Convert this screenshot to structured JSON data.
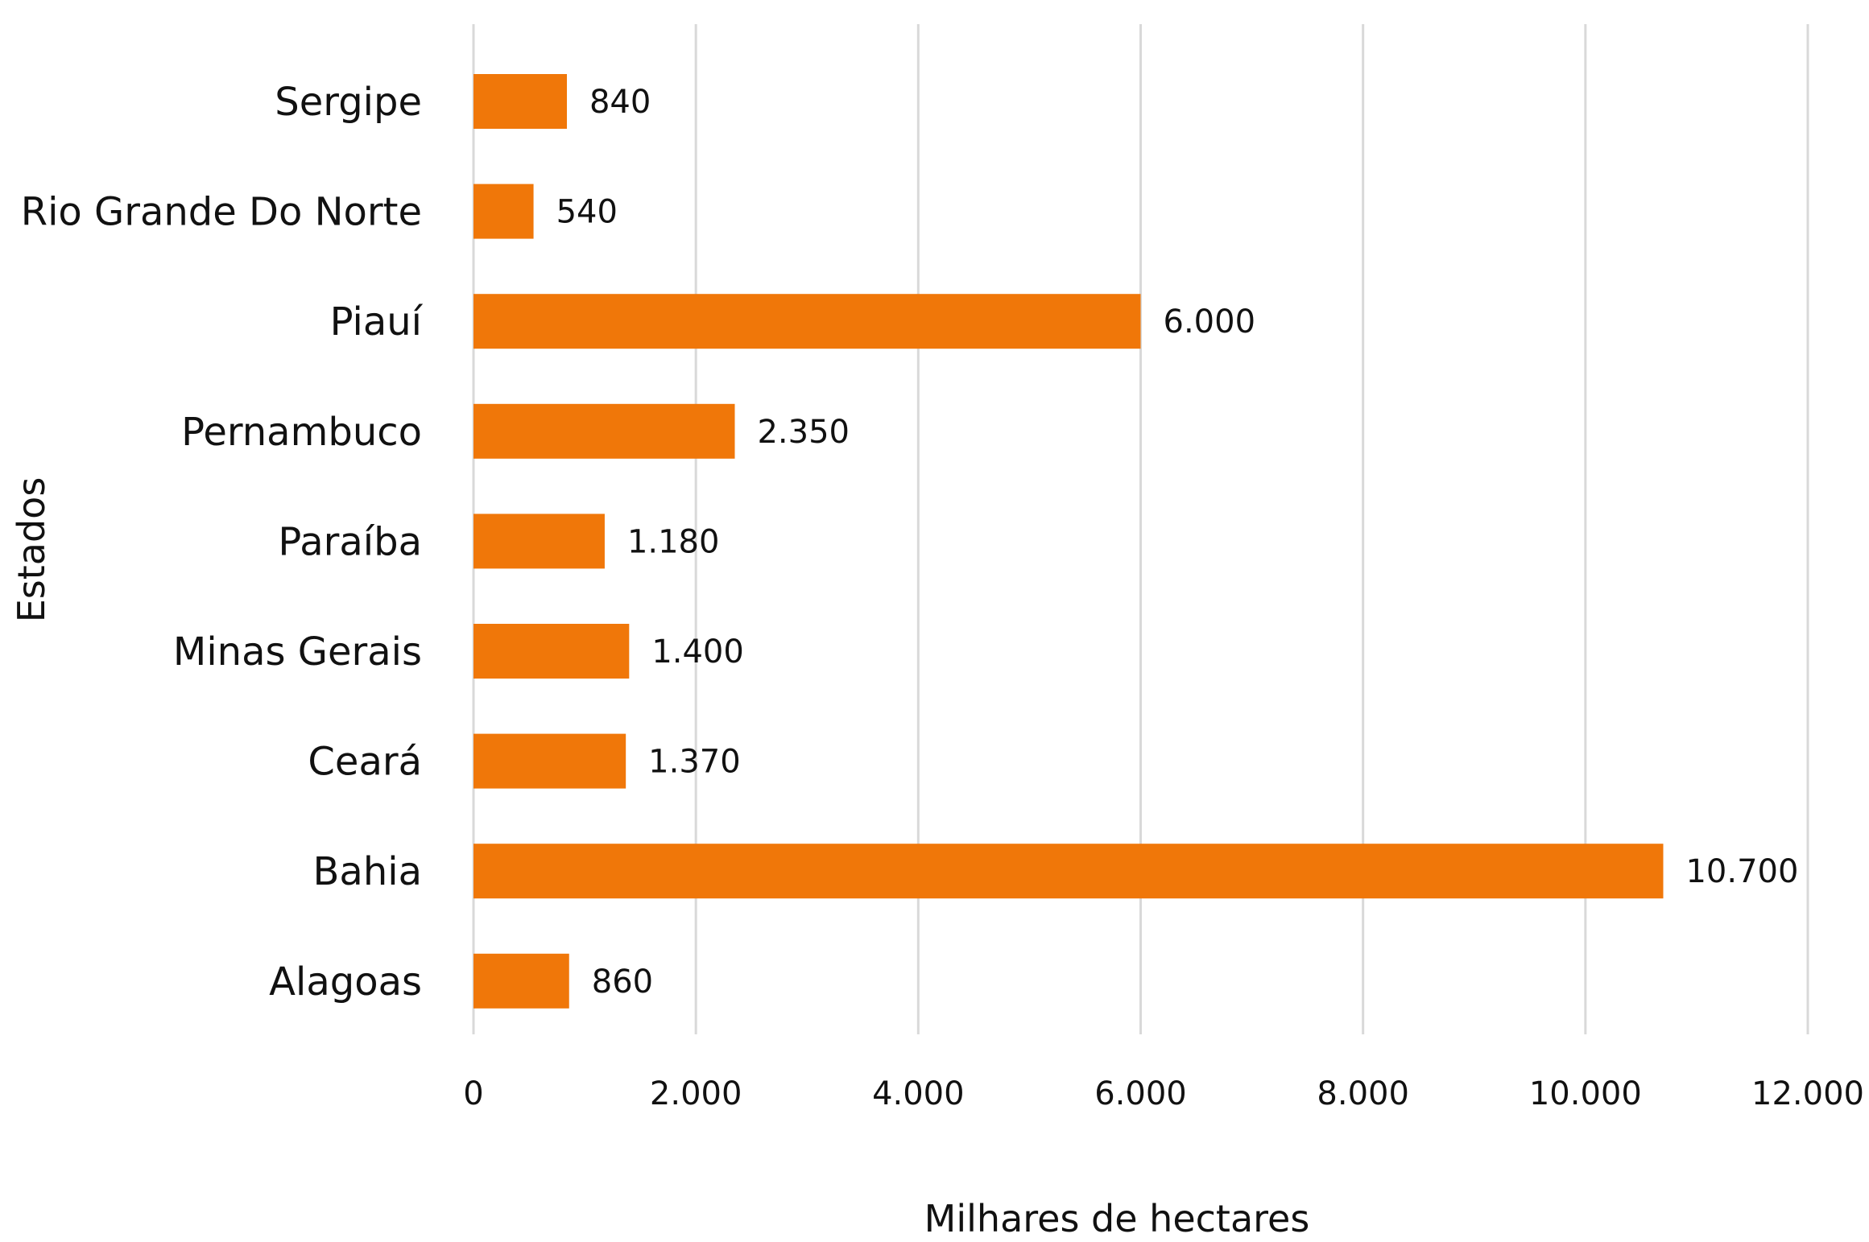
{
  "chart_data": {
    "type": "bar",
    "orientation": "horizontal",
    "categories": [
      "Sergipe",
      "Rio Grande Do Norte",
      "Piauí",
      "Pernambuco",
      "Paraíba",
      "Minas Gerais",
      "Ceará",
      "Bahia",
      "Alagoas"
    ],
    "values": [
      840,
      540,
      6000,
      2350,
      1180,
      1400,
      1370,
      10700,
      860
    ],
    "value_labels": [
      "840",
      "540",
      "6.000",
      "2.350",
      "1.180",
      "1.400",
      "1.370",
      "10.700",
      "860"
    ],
    "title": "",
    "xlabel": "Milhares de hectares",
    "ylabel": "Estados",
    "xlim": [
      0,
      12000
    ],
    "x_ticks": [
      0,
      2000,
      4000,
      6000,
      8000,
      10000,
      12000
    ],
    "x_tick_labels": [
      "0",
      "2.000",
      "4.000",
      "6.000",
      "8.000",
      "10.000",
      "12.000"
    ],
    "grid": "vertical",
    "legend": "none",
    "bar_color": "#F07709",
    "grid_color": "#D9D9D9"
  }
}
